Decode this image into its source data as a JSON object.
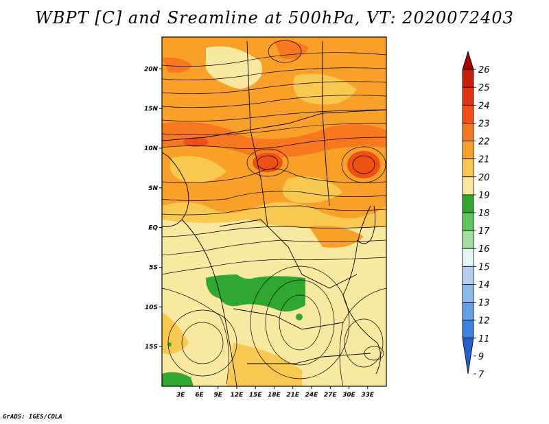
{
  "title": "WBPT [C] and Sreamline at 500hPa, VT: 2020072403",
  "credit": "GrADS: IGES/COLA",
  "map": {
    "lon_range": [
      0,
      36
    ],
    "lat_range": [
      -20,
      24
    ],
    "lon_ticks": [
      "3E",
      "6E",
      "9E",
      "12E",
      "15E",
      "18E",
      "21E",
      "24E",
      "27E",
      "30E",
      "33E"
    ],
    "lat_ticks": [
      "20N",
      "15N",
      "10N",
      "5N",
      "EQ",
      "5S",
      "10S",
      "15S"
    ],
    "field": "WBPT",
    "units": "C",
    "level": "500hPa"
  },
  "colorbar": {
    "labels": [
      "26",
      "25",
      "24",
      "23",
      "22",
      "21",
      "20",
      "19",
      "18",
      "17",
      "16",
      "15",
      "14",
      "13",
      "12",
      "11",
      "9",
      "7"
    ],
    "colors": [
      "#a00000",
      "#c81e0a",
      "#e1320f",
      "#f05014",
      "#f87820",
      "#f8a028",
      "#f8c850",
      "#f8e8a0",
      "#30a830",
      "#5cc85c",
      "#a0e0a0",
      "#e6f5f8",
      "#b4d2f0",
      "#8cbcec",
      "#64a0e6",
      "#3c82e0",
      "#2060d0"
    ]
  },
  "colors": {
    "coast": "#000000",
    "streamline": "#000000"
  }
}
